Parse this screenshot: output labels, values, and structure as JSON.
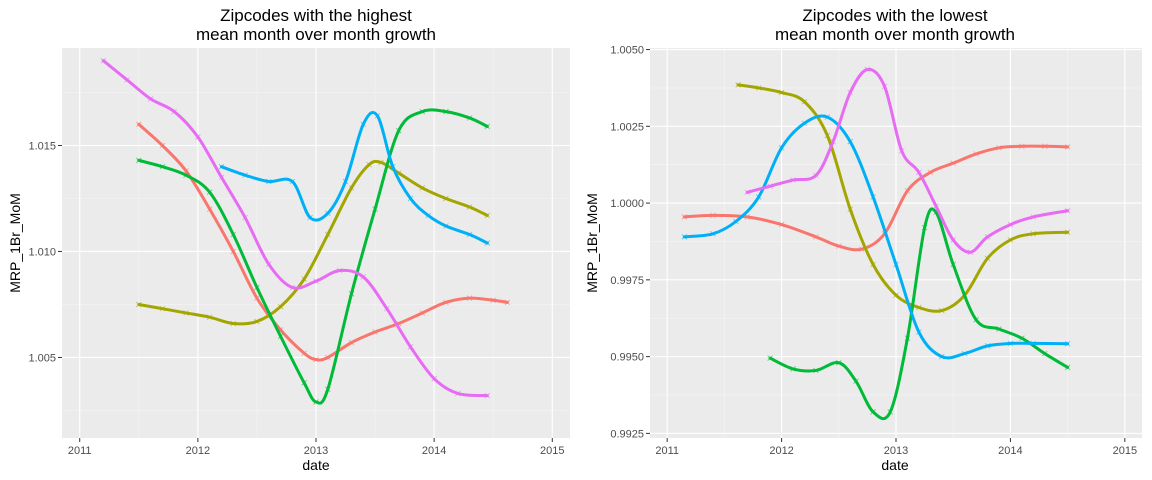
{
  "chart_data": [
    {
      "type": "line",
      "title_lines": [
        "Zipcodes with the highest",
        "mean month over month growth"
      ],
      "xlabel": "date",
      "ylabel": "MRP_1Br_MoM",
      "xlim": [
        2010.85,
        2015.15
      ],
      "ylim": [
        1.0012,
        1.0196
      ],
      "x_ticks": [
        2011,
        2012,
        2013,
        2014,
        2015
      ],
      "y_ticks": [
        1.005,
        1.01,
        1.015
      ],
      "y_tick_labels": [
        "1.005",
        "1.010",
        "1.015"
      ],
      "grid": true,
      "markers": "x",
      "series": [
        {
          "color": "#F8766D",
          "x": [
            2011.5,
            2011.7,
            2011.9,
            2012.1,
            2012.3,
            2012.5,
            2012.7,
            2012.9,
            2013.0,
            2013.1,
            2013.3,
            2013.5,
            2013.7,
            2013.9,
            2014.1,
            2014.3,
            2014.5,
            2014.62
          ],
          "y": [
            1.016,
            1.015,
            1.0138,
            1.012,
            1.01,
            1.0078,
            1.0063,
            1.0052,
            1.0049,
            1.005,
            1.0057,
            1.0062,
            1.0066,
            1.0071,
            1.0076,
            1.0078,
            1.0077,
            1.0076
          ]
        },
        {
          "color": "#A3A500",
          "x": [
            2011.5,
            2011.7,
            2011.9,
            2012.1,
            2012.3,
            2012.5,
            2012.7,
            2012.9,
            2013.1,
            2013.3,
            2013.45,
            2013.55,
            2013.7,
            2013.9,
            2014.1,
            2014.3,
            2014.45
          ],
          "y": [
            1.0075,
            1.0073,
            1.0071,
            1.0069,
            1.0066,
            1.0067,
            1.0074,
            1.0087,
            1.0108,
            1.013,
            1.0141,
            1.0142,
            1.0137,
            1.013,
            1.0125,
            1.0121,
            1.0117
          ]
        },
        {
          "color": "#00BA38",
          "x": [
            2011.5,
            2011.7,
            2011.9,
            2012.1,
            2012.3,
            2012.5,
            2012.7,
            2012.9,
            2013.0,
            2013.1,
            2013.3,
            2013.5,
            2013.7,
            2013.9,
            2014.1,
            2014.3,
            2014.45
          ],
          "y": [
            1.0143,
            1.014,
            1.0136,
            1.0128,
            1.0108,
            1.0083,
            1.006,
            1.0038,
            1.0029,
            1.0035,
            1.008,
            1.012,
            1.0157,
            1.0166,
            1.0166,
            1.0163,
            1.0159
          ]
        },
        {
          "color": "#00B0F6",
          "x": [
            2012.2,
            2012.4,
            2012.6,
            2012.8,
            2012.95,
            2013.1,
            2013.25,
            2013.4,
            2013.52,
            2013.65,
            2013.8,
            2013.95,
            2014.1,
            2014.3,
            2014.45
          ],
          "y": [
            1.014,
            1.0136,
            1.0133,
            1.0133,
            1.0116,
            1.0118,
            1.0133,
            1.016,
            1.0164,
            1.014,
            1.0125,
            1.0117,
            1.0112,
            1.0108,
            1.0104
          ]
        },
        {
          "color": "#E76BF3",
          "x": [
            2011.2,
            2011.4,
            2011.6,
            2011.8,
            2012.0,
            2012.2,
            2012.4,
            2012.6,
            2012.8,
            2013.0,
            2013.2,
            2013.4,
            2013.6,
            2013.8,
            2014.0,
            2014.2,
            2014.45
          ],
          "y": [
            1.019,
            1.0181,
            1.0172,
            1.0166,
            1.0154,
            1.0135,
            1.0116,
            1.0094,
            1.0083,
            1.0086,
            1.0091,
            1.0088,
            1.0073,
            1.0055,
            1.004,
            1.0033,
            1.0032
          ]
        }
      ]
    },
    {
      "type": "line",
      "title_lines": [
        "Zipcodes with the lowest",
        "mean month over month growth"
      ],
      "xlabel": "date",
      "ylabel": "MRP_1Br_MoM",
      "xlim": [
        2010.85,
        2015.15
      ],
      "ylim": [
        0.99235,
        1.00505
      ],
      "x_ticks": [
        2011,
        2012,
        2013,
        2014,
        2015
      ],
      "y_ticks": [
        0.9925,
        0.995,
        0.9975,
        1.0,
        1.0025,
        1.005
      ],
      "y_tick_labels": [
        "0.9925",
        "0.9950",
        "0.9975",
        "1.0000",
        "1.0025",
        "1.0050"
      ],
      "grid": true,
      "markers": "x",
      "series": [
        {
          "color": "#F8766D",
          "x": [
            2011.15,
            2011.4,
            2011.7,
            2012.0,
            2012.3,
            2012.5,
            2012.7,
            2012.9,
            2013.1,
            2013.3,
            2013.5,
            2013.7,
            2013.9,
            2014.1,
            2014.3,
            2014.5
          ],
          "y": [
            0.99955,
            0.9996,
            0.99955,
            0.9993,
            0.9989,
            0.9986,
            0.9985,
            0.999,
            1.0004,
            1.001,
            1.0013,
            1.0016,
            1.0018,
            1.00185,
            1.00185,
            1.00183
          ]
        },
        {
          "color": "#A3A500",
          "x": [
            2011.62,
            2011.8,
            2012.0,
            2012.2,
            2012.4,
            2012.6,
            2012.8,
            2013.0,
            2013.2,
            2013.4,
            2013.6,
            2013.8,
            2014.0,
            2014.2,
            2014.5
          ],
          "y": [
            1.00385,
            1.00375,
            1.0036,
            1.0033,
            1.0022,
            0.9998,
            0.998,
            0.997,
            0.9966,
            0.9965,
            0.997,
            0.9982,
            0.9988,
            0.999,
            0.99905
          ]
        },
        {
          "color": "#00BA38",
          "x": [
            2011.9,
            2012.1,
            2012.3,
            2012.5,
            2012.65,
            2012.8,
            2012.95,
            2013.1,
            2013.25,
            2013.35,
            2013.5,
            2013.7,
            2013.9,
            2014.1,
            2014.3,
            2014.5
          ],
          "y": [
            0.99495,
            0.9946,
            0.99455,
            0.9948,
            0.9942,
            0.9932,
            0.9932,
            0.9956,
            0.9992,
            0.9997,
            0.998,
            0.9962,
            0.9959,
            0.9956,
            0.9951,
            0.99465
          ]
        },
        {
          "color": "#00B0F6",
          "x": [
            2011.15,
            2011.4,
            2011.6,
            2011.8,
            2012.0,
            2012.2,
            2012.4,
            2012.6,
            2012.8,
            2013.0,
            2013.2,
            2013.4,
            2013.6,
            2013.8,
            2014.0,
            2014.2,
            2014.5
          ],
          "y": [
            0.9989,
            0.999,
            0.9994,
            1.0002,
            1.0018,
            1.0026,
            1.0028,
            1.002,
            1.0002,
            0.998,
            0.9958,
            0.995,
            0.9951,
            0.99535,
            0.99543,
            0.99543,
            0.99542
          ]
        },
        {
          "color": "#E76BF3",
          "x": [
            2011.7,
            2011.9,
            2012.1,
            2012.3,
            2012.45,
            2012.6,
            2012.75,
            2012.9,
            2013.05,
            2013.2,
            2013.35,
            2013.5,
            2013.65,
            2013.8,
            2014.0,
            2014.2,
            2014.5
          ],
          "y": [
            1.00035,
            1.00055,
            1.00075,
            1.0009,
            1.002,
            1.0036,
            1.00435,
            1.0038,
            1.0017,
            1.001,
            0.9999,
            0.9988,
            0.9984,
            0.9989,
            0.9993,
            0.99955,
            0.99975
          ]
        }
      ]
    }
  ]
}
